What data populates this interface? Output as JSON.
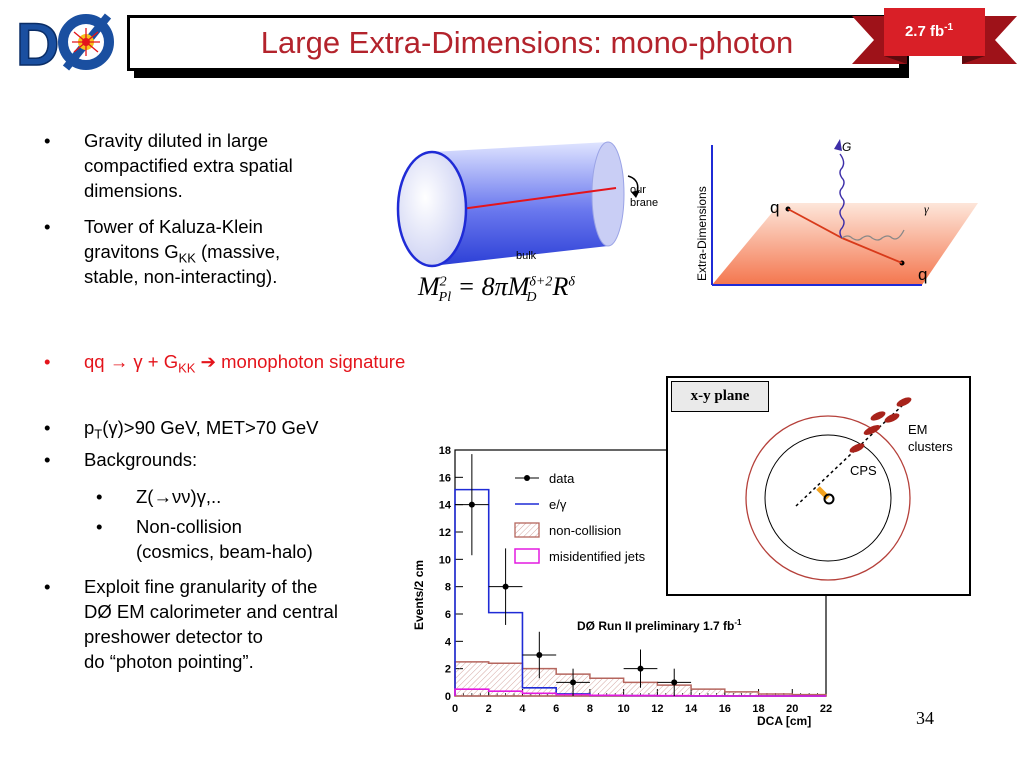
{
  "slide": {
    "title": "Large Extra-Dimensions: mono-photon",
    "lumi_badge": {
      "value": "2.7 fb",
      "exponent": "-1",
      "color": "#d91f27"
    },
    "page_number": "34",
    "logo_letters": "DØ"
  },
  "bullets": {
    "b1_l1": "Gravity diluted in large",
    "b1_l2": "compactified extra spatial",
    "b1_l3": "dimensions.",
    "b2_l1": "Tower of Kaluza-Klein",
    "b2_l2a": "gravitons G",
    "b2_l2_sub": "KK",
    "b2_l2b": " (massive,",
    "b2_l3": "stable, non-interacting).",
    "b3_a": "qq ",
    "b3_arrow": "→ γ + G",
    "b3_sub": "KK",
    "b3_b": " ➔ monophoton signature",
    "b4_a": "p",
    "b4_sub": "T",
    "b4_b": "(γ)>90 GeV, MET>70 GeV",
    "b5": "Backgrounds:",
    "b5a": "Z(→νν)γ,..",
    "b5b_l1": "Non-collision",
    "b5b_l2": "(cosmics, beam-halo)",
    "b6_l1": "Exploit fine granularity of the",
    "b6_l2": "DØ EM calorimeter and central",
    "b6_l3": "preshower detector to",
    "b6_l4": "do “photon pointing”."
  },
  "cylinder": {
    "brane_label_l1": "our",
    "brane_label_l2": "brane",
    "bulk_label": "bulk",
    "formula": {
      "lhs": "M",
      "lhs_sup": "2",
      "lhs_sub": "Pl",
      "eq": " = 8πM",
      "rhs_sup": "δ+2",
      "rhs_sub": "D",
      "r": "R",
      "r_sup": "δ"
    }
  },
  "extra_dim_diagram": {
    "axis_label": "Extra-Dimensions",
    "q_in": "q",
    "q_out": "q",
    "graviton": "G",
    "photon": "γ"
  },
  "xy_plane": {
    "title": "x-y plane",
    "em_l1": "EM",
    "em_l2": "clusters",
    "cps": "CPS"
  },
  "chart_data": {
    "type": "bar",
    "title": "DØ Run II preliminary 1.7 fb",
    "title_sup": "-1",
    "xlabel": "DCA [cm]",
    "ylabel": "Events/2 cm",
    "xlim": [
      0,
      22
    ],
    "ylim": [
      0,
      18
    ],
    "x_ticks": [
      "0",
      "2",
      "4",
      "6",
      "8",
      "10",
      "12",
      "14",
      "16",
      "18",
      "20",
      "22"
    ],
    "y_ticks": [
      "0",
      "2",
      "4",
      "6",
      "8",
      "10",
      "12",
      "14",
      "16",
      "18"
    ],
    "bin_edges": [
      0,
      2,
      4,
      6,
      8,
      10,
      12,
      14,
      16,
      18,
      20,
      22
    ],
    "series": [
      {
        "name": "data",
        "kind": "points",
        "color": "#000000",
        "x": [
          1,
          3,
          5,
          7,
          11,
          13
        ],
        "y": [
          14,
          8,
          3,
          1,
          2,
          1
        ],
        "err": [
          3.7,
          2.8,
          1.7,
          1.0,
          1.4,
          1.0
        ]
      },
      {
        "name": "e/γ",
        "kind": "step",
        "color": "#1f2bd6",
        "values": [
          15.1,
          6.1,
          0.6,
          0.15,
          0.05,
          0.02,
          0.01,
          0,
          0,
          0,
          0
        ]
      },
      {
        "name": "non-collision",
        "kind": "hatch",
        "color": "#b5665e",
        "values": [
          2.5,
          2.4,
          2.0,
          1.6,
          1.3,
          1.0,
          0.8,
          0.5,
          0.3,
          0.15,
          0.1
        ]
      },
      {
        "name": "misidentified jets",
        "kind": "step",
        "color": "#e31ae0",
        "values": [
          0.5,
          0.35,
          0.2,
          0.1,
          0.05,
          0.03,
          0.02,
          0.01,
          0,
          0,
          0
        ]
      }
    ],
    "legend_position": "top-right"
  }
}
